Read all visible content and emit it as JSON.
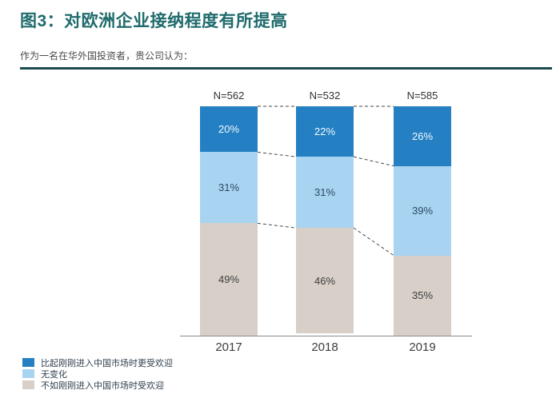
{
  "title": "图3：对欧洲企业接纳程度有所提高",
  "subtitle": "作为一名在华外国投资者，贵公司认为：",
  "colors": {
    "title": "#1F6B6D",
    "divider": "#1D4A4E",
    "axis": "#8a8a8a",
    "connector": "#4a4a4a",
    "more_welcome": "#2480C2",
    "no_change": "#A8D4F1",
    "less_welcome": "#D7CFC8"
  },
  "chart_data": {
    "type": "bar",
    "stacked": true,
    "categories": [
      "2017",
      "2018",
      "2019"
    ],
    "n_labels": [
      "N=562",
      "N=532",
      "N=585"
    ],
    "series": [
      {
        "name": "比起刚刚进入中国市场时更受欢迎",
        "color_key": "more_welcome",
        "label_color": "#F4F9FD",
        "values": [
          20,
          22,
          26
        ]
      },
      {
        "name": "无变化",
        "color_key": "no_change",
        "label_color": "#2C4A63",
        "values": [
          31,
          31,
          39
        ]
      },
      {
        "name": "不如刚刚进入中国市场时受欢迎",
        "color_key": "less_welcome",
        "label_color": "#3C3C3C",
        "values": [
          49,
          46,
          35
        ]
      }
    ],
    "value_suffix": "%",
    "ylim": [
      0,
      100
    ],
    "grid": false,
    "legend_position": "bottom-left",
    "connectors": "dashed"
  }
}
